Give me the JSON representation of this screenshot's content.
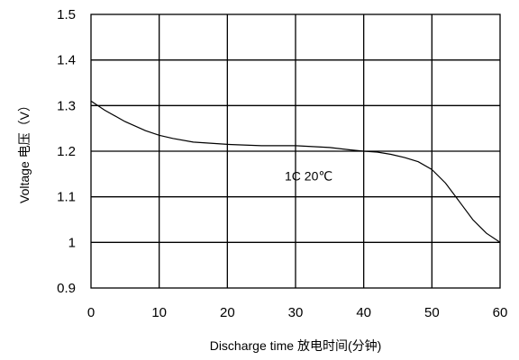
{
  "chart_data": {
    "type": "line",
    "title": "",
    "xlabel": "Discharge time 放电时间(分钟)",
    "ylabel": "Voltage 电压（V）",
    "xlim": [
      0,
      60
    ],
    "ylim": [
      0.9,
      1.5
    ],
    "x_ticks": [
      "0",
      "10",
      "20",
      "30",
      "40",
      "50",
      "60"
    ],
    "y_ticks": [
      "0.9",
      "1",
      "1.1",
      "1.2",
      "1.3",
      "1.4",
      "1.5"
    ],
    "grid": true,
    "annotations": [
      {
        "text": "1C 20℃",
        "x": 30,
        "y": 1.14
      }
    ],
    "series": [
      {
        "x": [
          0,
          2,
          5,
          8,
          10,
          12,
          15,
          20,
          25,
          30,
          35,
          38,
          40,
          42,
          44,
          46,
          48,
          50,
          52,
          54,
          56,
          58,
          60
        ],
        "y": [
          1.31,
          1.29,
          1.265,
          1.245,
          1.235,
          1.228,
          1.22,
          1.215,
          1.212,
          1.212,
          1.208,
          1.203,
          1.2,
          1.198,
          1.193,
          1.186,
          1.177,
          1.16,
          1.13,
          1.09,
          1.05,
          1.02,
          1.0
        ]
      }
    ]
  }
}
